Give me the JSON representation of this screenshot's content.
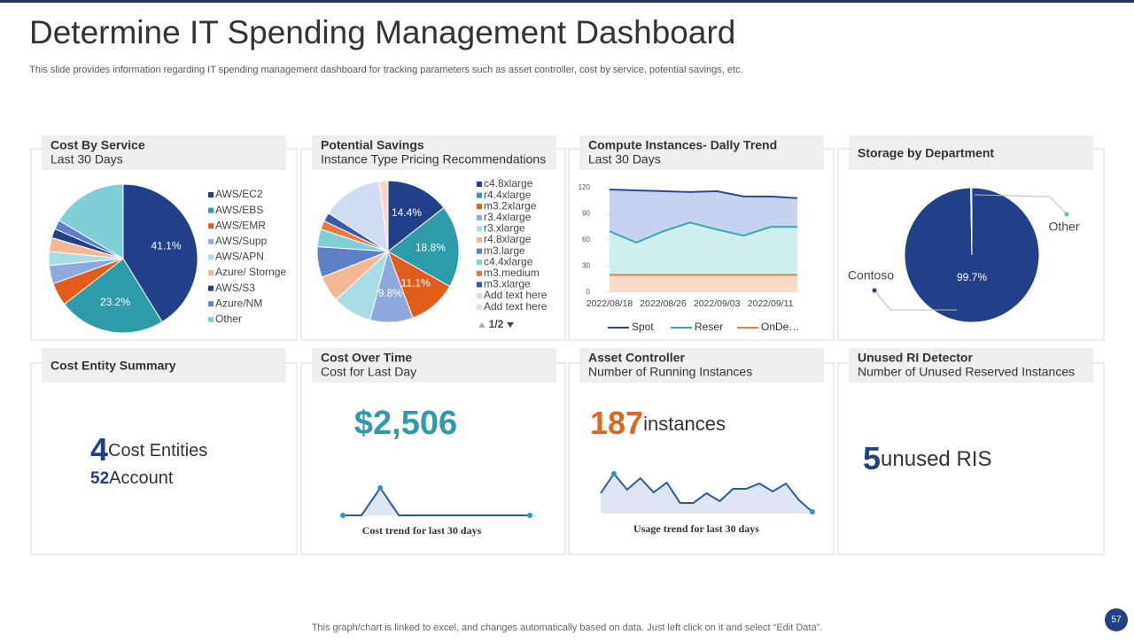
{
  "header": {
    "title": "Determine IT Spending Management Dashboard",
    "subtitle": "This slide provides information regarding IT spending management dashboard for tracking parameters such as asset controller, cost by service, potential savings, etc."
  },
  "footer": {
    "note": "This graph/chart is linked to excel,  and changes automatically based on data. Just left click on it and select “Edit Data”.",
    "page": "57"
  },
  "cards": [
    {
      "title": "Cost Entity Summary",
      "items": [
        {
          "value": "4",
          "label": "Cost Entities"
        },
        {
          "value": "52",
          "label": "Account"
        }
      ]
    },
    {
      "title": "Cost Over Time",
      "subtitle": "Cost for Last Day",
      "items": [
        {
          "value": "$2,506"
        }
      ]
    },
    {
      "title": "Asset Controller",
      "subtitle": "Number of Running Instances",
      "items": [
        {
          "value": "187",
          "label": "instances"
        }
      ]
    },
    {
      "title": "Unused RI Detector",
      "subtitle": "Number of Unused Reserved Instances",
      "items": [
        {
          "value": "5",
          "label": "unused RIS"
        }
      ]
    }
  ],
  "chart_data": [
    {
      "type": "pie",
      "title": "Cost By Service",
      "subtitle": "Last 30 Days",
      "categories": [
        "AWS/EC2",
        "AWS/EBS",
        "AWS/EMR",
        "AWS/Supp",
        "AWS/APN",
        "Azure/ Stornge",
        "AWS/S3",
        "Azure/NM",
        "Other"
      ],
      "values": [
        41.1,
        23.2,
        5,
        4,
        3,
        3,
        2,
        2,
        16.4
      ],
      "value_labels": [
        "41.1%",
        "23.2%",
        null,
        null,
        null,
        null,
        null,
        null,
        null
      ],
      "colors": [
        "#22408a",
        "#2e9bab",
        "#e35d1a",
        "#8ea9db",
        "#a8dde6",
        "#f4b896",
        "#22408a",
        "#5f7fc6",
        "#7ecfd8"
      ]
    },
    {
      "type": "pie",
      "title": "Potential Savings",
      "subtitle": "Instance Type Pricing Recommendations",
      "categories": [
        "c4.8xlarge",
        "r4.4xlarge",
        "m3.2xlarge",
        "r3.4xlarge",
        "r3.xlarge",
        "r4.8xlarge",
        "m3.large",
        "c4.4xlarge",
        "m3.medium",
        "m3.xlarge",
        "Add text here",
        "Add text here"
      ],
      "values": [
        14.4,
        18.8,
        11.1,
        9.8,
        9,
        6,
        7,
        4,
        2,
        2,
        13.9,
        2
      ],
      "value_labels": [
        "14.4%",
        "18.8%",
        "11.1%",
        "9.8%",
        null,
        null,
        null,
        null,
        null,
        null,
        null,
        null
      ],
      "colors": [
        "#22408a",
        "#2e9bab",
        "#e35d1a",
        "#8ea9db",
        "#a8dde6",
        "#f4b896",
        "#5f7fc6",
        "#7ecfd8",
        "#e8793f",
        "#3a5aa8",
        "#d0dcf2",
        "#f9d7c4"
      ],
      "pager": "1/2"
    },
    {
      "type": "line",
      "title": "Compute Instances- Dally Trend",
      "subtitle": "Last 30 Days",
      "categories": [
        "2022/08/18",
        null,
        "2022/08/26",
        null,
        "2022/09/03",
        null,
        "2022/09/11",
        null
      ],
      "ylim": [
        0,
        120
      ],
      "yticks": [
        0,
        30,
        60,
        90,
        120
      ],
      "area": true,
      "series": [
        {
          "name": "Spot",
          "color": "#2a4a8c",
          "fill": "#c5d3f0",
          "values": [
            118,
            117,
            116,
            115,
            116,
            110,
            110,
            108
          ]
        },
        {
          "name": "Reser",
          "color": "#3aa6b0",
          "fill": "#cfeef0",
          "values": [
            70,
            57,
            70,
            80,
            72,
            65,
            75,
            75
          ]
        },
        {
          "name": "OnDe…",
          "color": "#f07a3a",
          "fill": "#fbd9c6",
          "values": [
            20,
            20,
            20,
            20,
            20,
            20,
            20,
            20
          ]
        }
      ]
    },
    {
      "type": "pie",
      "title": "Storage by Department",
      "categories": [
        "Contoso",
        "Other"
      ],
      "values": [
        99.7,
        0.3
      ],
      "value_labels": [
        "99.7%",
        null
      ],
      "colors": [
        "#22408a",
        "#5fb8c4"
      ]
    },
    {
      "type": "line",
      "caption": "Cost trend for last 30 days",
      "ylim": [
        0,
        30
      ],
      "area": true,
      "series": [
        {
          "color": "#2a5aa0",
          "fill": "#dde6f2",
          "values": [
            0,
            0,
            30,
            0,
            0,
            0,
            0,
            0,
            0,
            0,
            0
          ]
        }
      ]
    },
    {
      "type": "line",
      "caption": "Usage trend for last 30 days",
      "ylim": [
        0,
        60
      ],
      "area": true,
      "series": [
        {
          "color": "#2a5aa0",
          "fill": "#dde6f2",
          "values": [
            23,
            45,
            27,
            40,
            24,
            35,
            12,
            12,
            23,
            14,
            28,
            28,
            34,
            25,
            34,
            15,
            2
          ]
        }
      ]
    }
  ]
}
